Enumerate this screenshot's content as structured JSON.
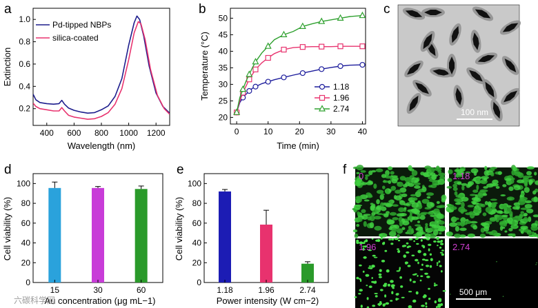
{
  "panels": {
    "a": "a",
    "b": "b",
    "c": "c",
    "d": "d",
    "e": "e",
    "f": "f"
  },
  "chart_data": [
    {
      "id": "a",
      "type": "line",
      "xlabel": "Wavelength (nm)",
      "ylabel": "Extinction",
      "xlim": [
        300,
        1300
      ],
      "ylim": [
        0.05,
        1.1
      ],
      "xticks": [
        400,
        600,
        800,
        1000,
        1200
      ],
      "yticks": [
        0.2,
        0.4,
        0.6,
        0.8,
        1.0
      ],
      "xtick_labels": [
        "400",
        "600",
        "800",
        "1000",
        "1200"
      ],
      "ytick_labels": [
        "0.2",
        "0.4",
        "0.6",
        "0.8",
        "1.0"
      ],
      "series": [
        {
          "name": "Pd-tipped NBPs",
          "color": "#1c1c8c",
          "points": [
            [
              300,
              0.33
            ],
            [
              320,
              0.28
            ],
            [
              350,
              0.255
            ],
            [
              400,
              0.245
            ],
            [
              450,
              0.24
            ],
            [
              490,
              0.245
            ],
            [
              510,
              0.275
            ],
            [
              530,
              0.24
            ],
            [
              560,
              0.205
            ],
            [
              600,
              0.185
            ],
            [
              650,
              0.17
            ],
            [
              700,
              0.16
            ],
            [
              750,
              0.165
            ],
            [
              800,
              0.19
            ],
            [
              850,
              0.225
            ],
            [
              900,
              0.31
            ],
            [
              950,
              0.47
            ],
            [
              1000,
              0.77
            ],
            [
              1040,
              0.97
            ],
            [
              1060,
              1.03
            ],
            [
              1080,
              1.0
            ],
            [
              1110,
              0.85
            ],
            [
              1150,
              0.58
            ],
            [
              1200,
              0.34
            ],
            [
              1250,
              0.22
            ],
            [
              1300,
              0.16
            ]
          ]
        },
        {
          "name": "silica-coated",
          "color": "#e8326e",
          "points": [
            [
              300,
              0.25
            ],
            [
              320,
              0.22
            ],
            [
              350,
              0.2
            ],
            [
              400,
              0.19
            ],
            [
              450,
              0.18
            ],
            [
              490,
              0.18
            ],
            [
              510,
              0.21
            ],
            [
              530,
              0.18
            ],
            [
              560,
              0.14
            ],
            [
              600,
              0.125
            ],
            [
              650,
              0.115
            ],
            [
              700,
              0.105
            ],
            [
              750,
              0.11
            ],
            [
              800,
              0.13
            ],
            [
              850,
              0.165
            ],
            [
              900,
              0.24
            ],
            [
              950,
              0.38
            ],
            [
              1000,
              0.64
            ],
            [
              1040,
              0.88
            ],
            [
              1070,
              0.98
            ],
            [
              1090,
              0.96
            ],
            [
              1120,
              0.82
            ],
            [
              1160,
              0.55
            ],
            [
              1210,
              0.32
            ],
            [
              1260,
              0.2
            ],
            [
              1300,
              0.15
            ]
          ]
        }
      ]
    },
    {
      "id": "b",
      "type": "line",
      "xlabel": "Time (min)",
      "ylabel": "Temperature (°C)",
      "xlim": [
        -2,
        41
      ],
      "ylim": [
        18,
        53
      ],
      "xticks": [
        0,
        10,
        20,
        30,
        40
      ],
      "yticks": [
        20,
        25,
        30,
        35,
        40,
        45,
        50
      ],
      "xtick_labels": [
        "0",
        "10",
        "20",
        "30",
        "40"
      ],
      "ytick_labels": [
        "20",
        "25",
        "30",
        "35",
        "40",
        "45",
        "50"
      ],
      "series": [
        {
          "name": "1.18",
          "color": "#1c1c9c",
          "marker": "circle",
          "x": [
            0,
            1,
            2,
            3,
            4,
            5,
            6,
            8,
            10,
            12,
            15,
            18,
            21,
            24,
            27,
            30,
            33,
            36,
            40
          ],
          "y": [
            21.5,
            24.5,
            26,
            27,
            28,
            28.8,
            29.3,
            30.2,
            30.8,
            31.4,
            32.1,
            32.8,
            33.4,
            34,
            34.6,
            35.1,
            35.5,
            35.8,
            35.9
          ]
        },
        {
          "name": "1.96",
          "color": "#e8326e",
          "marker": "square",
          "x": [
            0,
            1,
            2,
            3,
            4,
            5,
            6,
            8,
            10,
            12,
            15,
            18,
            21,
            24,
            27,
            30,
            33,
            36,
            40
          ],
          "y": [
            21.5,
            25,
            27.5,
            29.5,
            31.5,
            33,
            34.5,
            36.5,
            38,
            39.3,
            40.5,
            41.1,
            41.3,
            41.4,
            41.4,
            41.4,
            41.5,
            41.5,
            41.5
          ]
        },
        {
          "name": "2.74",
          "color": "#2ea02e",
          "marker": "triangle",
          "x": [
            0,
            1,
            2,
            3,
            4,
            5,
            6,
            8,
            10,
            12,
            15,
            18,
            21,
            24,
            27,
            30,
            33,
            36,
            40
          ],
          "y": [
            21.5,
            26,
            28.5,
            31,
            33,
            35,
            36.8,
            39.5,
            41.5,
            43.5,
            45,
            46,
            47.5,
            48.3,
            49,
            49.5,
            50,
            50.5,
            50.8
          ]
        }
      ]
    },
    {
      "id": "d",
      "type": "bar",
      "xlabel": "Au concentration (μg mL−1)",
      "ylabel": "Cell viability (%)",
      "ylim": [
        0,
        110
      ],
      "yticks": [
        0,
        20,
        40,
        60,
        80,
        100
      ],
      "ytick_labels": [
        "0",
        "20",
        "40",
        "60",
        "80",
        "100"
      ],
      "categories": [
        "15",
        "30",
        "60"
      ],
      "values": [
        95.5,
        95.5,
        94.5
      ],
      "errors": [
        6,
        1.5,
        3
      ],
      "colors": [
        "#2aa2dc",
        "#c83cd8",
        "#2a9a2a"
      ]
    },
    {
      "id": "e",
      "type": "bar",
      "xlabel": "Power intensity (W cm−2)",
      "ylabel": "Cell viability (%)",
      "ylim": [
        0,
        110
      ],
      "yticks": [
        0,
        20,
        40,
        60,
        80,
        100
      ],
      "ytick_labels": [
        "0",
        "20",
        "40",
        "60",
        "80",
        "100"
      ],
      "categories": [
        "1.18",
        "1.96",
        "2.74"
      ],
      "values": [
        92,
        58.5,
        19
      ],
      "errors": [
        2,
        14.5,
        2
      ],
      "colors": [
        "#1c1cb4",
        "#e8326e",
        "#2a9a2a"
      ]
    }
  ],
  "panel_c": {
    "scale_label": "100 nm"
  },
  "panel_f": {
    "labels": [
      "0",
      "1.18",
      "1.96",
      "2.74"
    ],
    "label_color": "#d040d0",
    "scale_label": "500 μm"
  },
  "watermark": "六碳科学网"
}
